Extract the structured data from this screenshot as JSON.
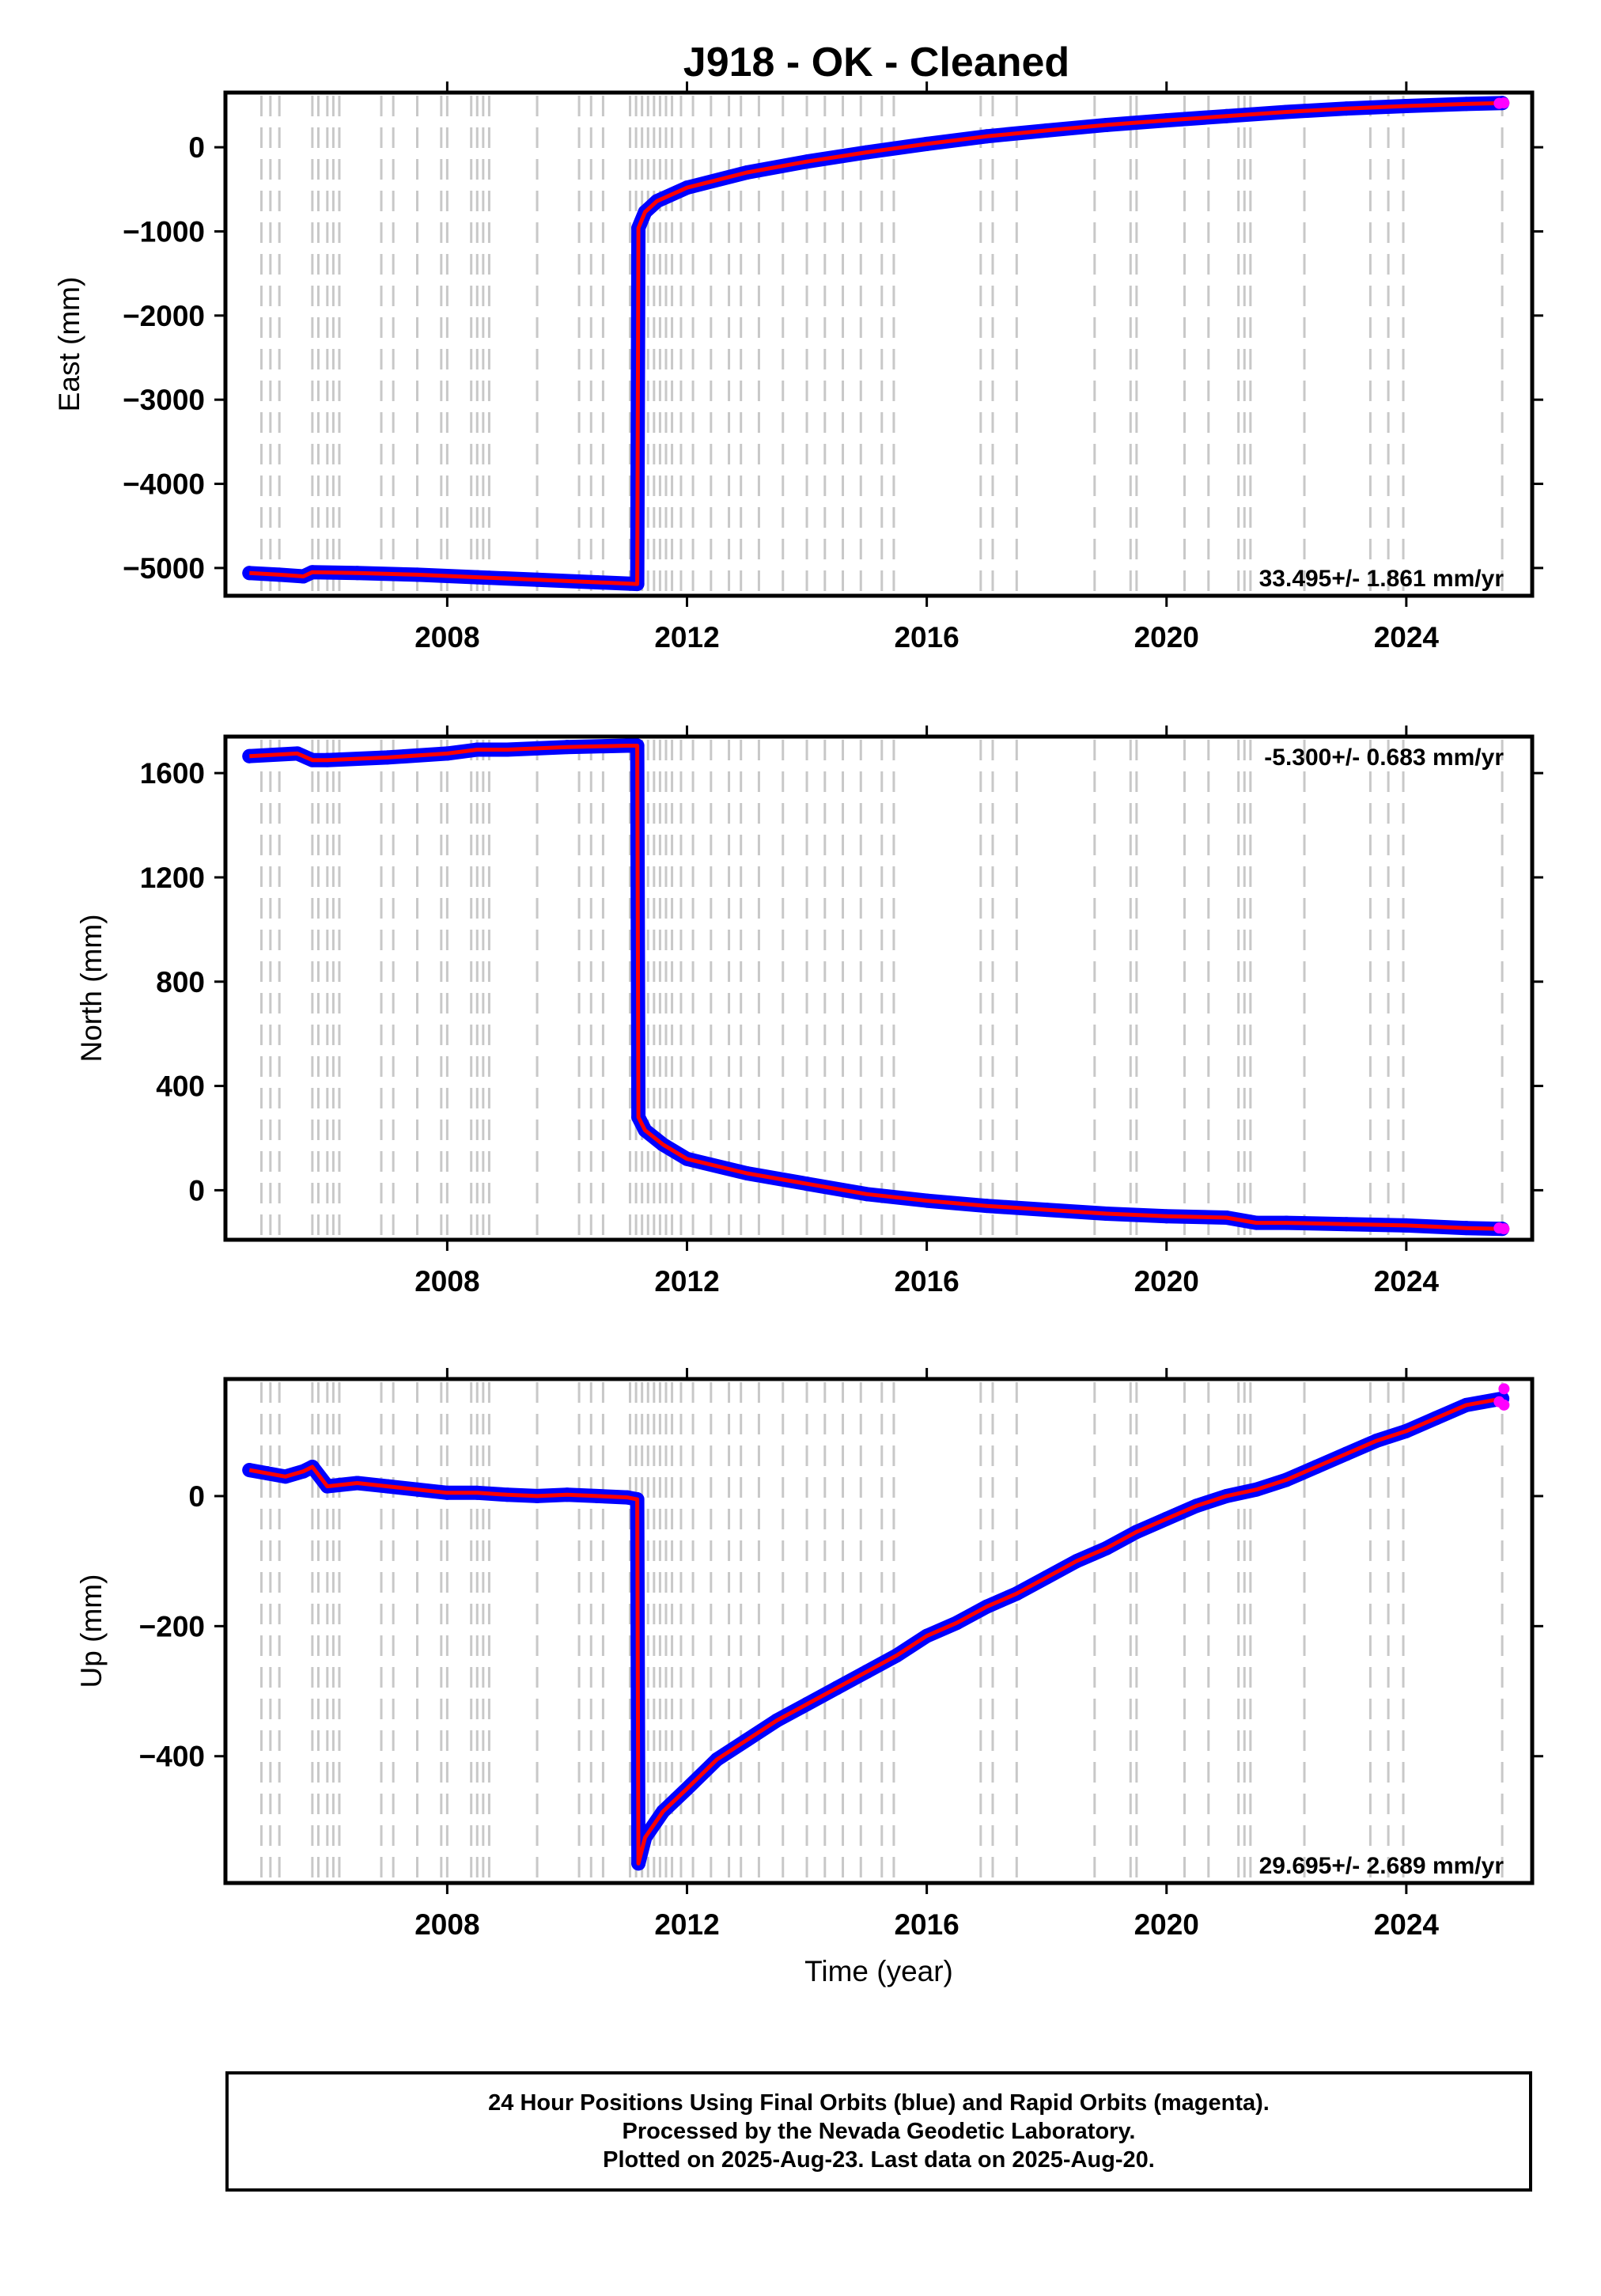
{
  "chart_data": [
    {
      "type": "scatter",
      "title": "J918  - OK - Cleaned",
      "ylabel": "East (mm)",
      "xlabel": "",
      "xlim": [
        2004.3,
        2026.1
      ],
      "ylim": [
        -5330,
        650
      ],
      "yticks": [
        0,
        -1000,
        -2000,
        -3000,
        -4000,
        -5000
      ],
      "xticks": [
        2008,
        2012,
        2016,
        2020,
        2024
      ],
      "rate": "33.495+/- 1.861 mm/yr",
      "rate_position": "bottom-right",
      "grid": false,
      "series": [
        {
          "color": "#0000ff",
          "style": "points",
          "x": [
            2004.7,
            2005.2,
            2005.6,
            2005.75,
            2006.5,
            2007.5,
            2008.5,
            2009.5,
            2010.5,
            2011.17,
            2011.19,
            2011.3,
            2011.5,
            2012,
            2013,
            2014,
            2015,
            2016,
            2017,
            2018,
            2019,
            2020,
            2021,
            2022,
            2023,
            2024,
            2025,
            2025.6
          ],
          "y": [
            -5060,
            -5080,
            -5100,
            -5050,
            -5060,
            -5080,
            -5110,
            -5140,
            -5170,
            -5190,
            -960,
            -770,
            -640,
            -480,
            -300,
            -170,
            -60,
            40,
            130,
            200,
            265,
            320,
            370,
            420,
            460,
            490,
            515,
            525
          ]
        },
        {
          "color": "#ff0000",
          "style": "line",
          "x": [
            2004.7,
            2005.2,
            2005.6,
            2005.75,
            2006.5,
            2007.5,
            2008.5,
            2009.5,
            2010.5,
            2011.17,
            2011.19,
            2011.3,
            2011.5,
            2012,
            2013,
            2014,
            2015,
            2016,
            2017,
            2018,
            2019,
            2020,
            2021,
            2022,
            2023,
            2024,
            2025,
            2025.6
          ],
          "y": [
            -5060,
            -5080,
            -5100,
            -5050,
            -5060,
            -5080,
            -5110,
            -5140,
            -5170,
            -5190,
            -960,
            -770,
            -640,
            -480,
            -300,
            -170,
            -60,
            40,
            130,
            200,
            265,
            320,
            370,
            420,
            460,
            490,
            515,
            525
          ]
        },
        {
          "color": "#ff00ff",
          "style": "points",
          "x": [
            2025.55,
            2025.63
          ],
          "y": [
            522,
            527
          ]
        }
      ]
    },
    {
      "type": "scatter",
      "title": "",
      "ylabel": "North (mm)",
      "xlabel": "",
      "xlim": [
        2004.3,
        2026.1
      ],
      "ylim": [
        -190,
        1740
      ],
      "yticks": [
        1600,
        1200,
        800,
        400,
        0
      ],
      "xticks": [
        2008,
        2012,
        2016,
        2020,
        2024
      ],
      "rate": "-5.300+/- 0.683 mm/yr",
      "rate_position": "top-right",
      "grid": false,
      "series": [
        {
          "color": "#0000ff",
          "style": "points",
          "x": [
            2004.7,
            2005.5,
            2005.75,
            2006,
            2007,
            2008,
            2008.5,
            2009,
            2010,
            2011,
            2011.17,
            2011.19,
            2011.3,
            2011.6,
            2012,
            2013,
            2014,
            2015,
            2016,
            2017,
            2018,
            2019,
            2020,
            2021,
            2021.5,
            2022,
            2023,
            2024,
            2025,
            2025.6
          ],
          "y": [
            1665,
            1675,
            1650,
            1650,
            1660,
            1675,
            1690,
            1690,
            1700,
            1705,
            1705,
            280,
            230,
            175,
            120,
            65,
            25,
            -15,
            -40,
            -60,
            -75,
            -90,
            -100,
            -105,
            -125,
            -125,
            -130,
            -135,
            -145,
            -148
          ]
        },
        {
          "color": "#ff0000",
          "style": "line",
          "x": [
            2004.7,
            2005.5,
            2005.75,
            2006,
            2007,
            2008,
            2008.5,
            2009,
            2010,
            2011,
            2011.17,
            2011.19,
            2011.3,
            2011.6,
            2012,
            2013,
            2014,
            2015,
            2016,
            2017,
            2018,
            2019,
            2020,
            2021,
            2021.5,
            2022,
            2023,
            2024,
            2025,
            2025.6
          ],
          "y": [
            1665,
            1675,
            1650,
            1650,
            1660,
            1675,
            1690,
            1690,
            1700,
            1705,
            1705,
            280,
            230,
            175,
            120,
            65,
            25,
            -15,
            -40,
            -60,
            -75,
            -90,
            -100,
            -105,
            -125,
            -125,
            -130,
            -135,
            -145,
            -148
          ]
        },
        {
          "color": "#ff00ff",
          "style": "points",
          "x": [
            2025.55,
            2025.63
          ],
          "y": [
            -145,
            -148
          ]
        }
      ]
    },
    {
      "type": "scatter",
      "title": "",
      "ylabel": "Up (mm)",
      "xlabel": "Time (year)",
      "xlim": [
        2004.3,
        2026.1
      ],
      "ylim": [
        -595,
        180
      ],
      "yticks": [
        0,
        -200,
        -400
      ],
      "xticks": [
        2008,
        2012,
        2016,
        2020,
        2024
      ],
      "rate": "29.695+/- 2.689 mm/yr",
      "rate_position": "bottom-right",
      "grid": false,
      "series": [
        {
          "color": "#0000ff",
          "style": "points",
          "x": [
            2004.7,
            2005.0,
            2005.3,
            2005.6,
            2005.75,
            2006.0,
            2006.5,
            2007,
            2007.5,
            2008,
            2008.5,
            2009,
            2009.5,
            2010,
            2010.5,
            2011.0,
            2011.17,
            2011.19,
            2011.3,
            2011.6,
            2012,
            2012.5,
            2013,
            2013.5,
            2014,
            2014.5,
            2015,
            2015.5,
            2016,
            2016.5,
            2017,
            2017.5,
            2018,
            2018.5,
            2019,
            2019.5,
            2020,
            2020.5,
            2021,
            2021.5,
            2022,
            2022.5,
            2023,
            2023.5,
            2024,
            2024.5,
            2025,
            2025.6
          ],
          "y": [
            40,
            35,
            30,
            38,
            45,
            15,
            20,
            15,
            10,
            5,
            5,
            2,
            0,
            2,
            0,
            -2,
            -5,
            -565,
            -525,
            -485,
            -450,
            -405,
            -375,
            -345,
            -320,
            -295,
            -270,
            -245,
            -215,
            -195,
            -170,
            -150,
            -125,
            -100,
            -80,
            -55,
            -35,
            -15,
            0,
            10,
            25,
            45,
            65,
            85,
            100,
            120,
            140,
            150
          ]
        },
        {
          "color": "#ff0000",
          "style": "line",
          "x": [
            2004.7,
            2005.0,
            2005.3,
            2005.6,
            2005.75,
            2006.0,
            2006.5,
            2007,
            2007.5,
            2008,
            2008.5,
            2009,
            2009.5,
            2010,
            2010.5,
            2011.0,
            2011.17,
            2011.19,
            2011.3,
            2011.6,
            2012,
            2012.5,
            2013,
            2013.5,
            2014,
            2014.5,
            2015,
            2015.5,
            2016,
            2016.5,
            2017,
            2017.5,
            2018,
            2018.5,
            2019,
            2019.5,
            2020,
            2020.5,
            2021,
            2021.5,
            2022,
            2022.5,
            2023,
            2023.5,
            2024,
            2024.5,
            2025,
            2025.6
          ],
          "y": [
            40,
            35,
            30,
            38,
            45,
            15,
            20,
            15,
            10,
            5,
            5,
            2,
            0,
            2,
            0,
            -2,
            -5,
            -565,
            -525,
            -485,
            -450,
            -405,
            -375,
            -345,
            -320,
            -295,
            -270,
            -245,
            -215,
            -195,
            -170,
            -150,
            -125,
            -100,
            -80,
            -55,
            -35,
            -15,
            0,
            10,
            25,
            45,
            65,
            85,
            100,
            120,
            140,
            150
          ]
        },
        {
          "color": "#ff00ff",
          "style": "points",
          "x": [
            2025.55,
            2025.63,
            2025.63
          ],
          "y": [
            145,
            140,
            165
          ]
        }
      ]
    }
  ],
  "equipment_change_years": [
    2004.9,
    2005.05,
    2005.2,
    2005.75,
    2005.85,
    2006.0,
    2006.1,
    2006.2,
    2006.9,
    2007.1,
    2007.5,
    2007.9,
    2008.0,
    2008.4,
    2008.5,
    2008.6,
    2008.7,
    2009.5,
    2010.2,
    2010.4,
    2010.6,
    2011.05,
    2011.15,
    2011.25,
    2011.35,
    2011.45,
    2011.55,
    2011.65,
    2011.75,
    2011.9,
    2012.1,
    2012.4,
    2012.7,
    2012.9,
    2013.2,
    2013.6,
    2014.0,
    2014.3,
    2014.6,
    2014.9,
    2015.25,
    2015.45,
    2016.9,
    2017.1,
    2017.5,
    2018.8,
    2019.4,
    2019.5,
    2020.3,
    2020.7,
    2021.2,
    2021.3,
    2021.4,
    2022.3,
    2023.4,
    2023.7,
    2023.95,
    2025.6
  ],
  "footer": {
    "line1": "24 Hour Positions Using Final Orbits (blue) and Rapid Orbits (magenta).",
    "line2": "Processed by the Nevada Geodetic Laboratory.",
    "line3": "Plotted on 2025-Aug-23. Last data on 2025-Aug-20."
  }
}
